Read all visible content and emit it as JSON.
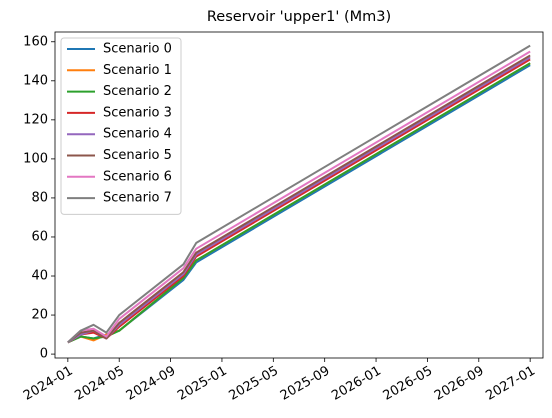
{
  "chart_data": {
    "type": "line",
    "title": "Reservoir 'upper1' (Mm3)",
    "x": [
      "2024-01",
      "2024-02",
      "2024-03",
      "2024-04",
      "2024-05",
      "2024-10",
      "2024-11",
      "2027-01"
    ],
    "series": [
      {
        "name": "Scenario 0",
        "color": "#1f77b4",
        "values": [
          6,
          9,
          8,
          10,
          12,
          38,
          47,
          148
        ]
      },
      {
        "name": "Scenario 1",
        "color": "#ff7f0e",
        "values": [
          6,
          9,
          7,
          10,
          12,
          39,
          48,
          149
        ]
      },
      {
        "name": "Scenario 2",
        "color": "#2ca02c",
        "values": [
          6,
          9,
          8,
          9,
          12,
          39,
          48,
          149
        ]
      },
      {
        "name": "Scenario 3",
        "color": "#d62728",
        "values": [
          6,
          10,
          11,
          8,
          14,
          40,
          50,
          151
        ]
      },
      {
        "name": "Scenario 4",
        "color": "#9467bd",
        "values": [
          6,
          10,
          12,
          8,
          15,
          41,
          51,
          152
        ]
      },
      {
        "name": "Scenario 5",
        "color": "#8c564b",
        "values": [
          6,
          11,
          12,
          8,
          16,
          42,
          52,
          153
        ]
      },
      {
        "name": "Scenario 6",
        "color": "#e377c2",
        "values": [
          6,
          12,
          13,
          9,
          18,
          44,
          54,
          155
        ]
      },
      {
        "name": "Scenario 7",
        "color": "#7f7f7f",
        "values": [
          6,
          12,
          15,
          11,
          20,
          46,
          57,
          158
        ]
      }
    ],
    "xlim": [
      "2023-12",
      "2027-02"
    ],
    "xticks": [
      "2024-01",
      "2024-05",
      "2024-09",
      "2025-01",
      "2025-05",
      "2025-09",
      "2026-01",
      "2026-05",
      "2026-09",
      "2027-01"
    ],
    "ylim": [
      -2,
      165
    ],
    "yticks": [
      0,
      20,
      40,
      60,
      80,
      100,
      120,
      140,
      160
    ],
    "legend": "upper-left",
    "grid": false
  }
}
